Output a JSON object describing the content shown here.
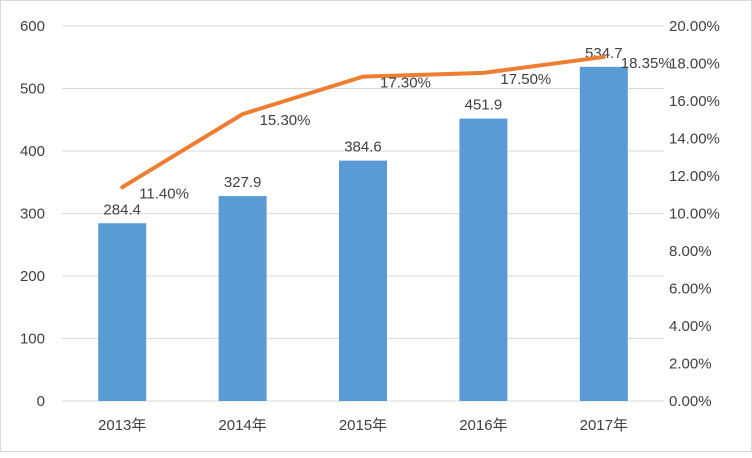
{
  "chart_data": {
    "type": "bar+line",
    "categories": [
      "2013年",
      "2014年",
      "2015年",
      "2016年",
      "2017年"
    ],
    "series": [
      {
        "type": "bar",
        "axis": "left",
        "values": [
          284.4,
          327.9,
          384.6,
          451.9,
          534.7
        ],
        "labels": [
          "284.4",
          "327.9",
          "384.6",
          "451.9",
          "534.7"
        ],
        "color": "#5b9bd5"
      },
      {
        "type": "line",
        "axis": "right",
        "values": [
          11.4,
          15.3,
          17.3,
          17.5,
          18.35
        ],
        "labels": [
          "11.40%",
          "15.30%",
          "17.30%",
          "17.50%",
          "18.35%"
        ],
        "color": "#ed7d31"
      }
    ],
    "left_axis": {
      "range": [
        0,
        600
      ],
      "ticks": [
        "0",
        "100",
        "200",
        "300",
        "400",
        "500",
        "600"
      ]
    },
    "right_axis": {
      "range": [
        0,
        20
      ],
      "ticks": [
        "0.00%",
        "2.00%",
        "4.00%",
        "6.00%",
        "8.00%",
        "10.00%",
        "12.00%",
        "14.00%",
        "16.00%",
        "18.00%",
        "20.00%"
      ]
    },
    "grid": true,
    "gridColor": "#d9d9d9"
  }
}
